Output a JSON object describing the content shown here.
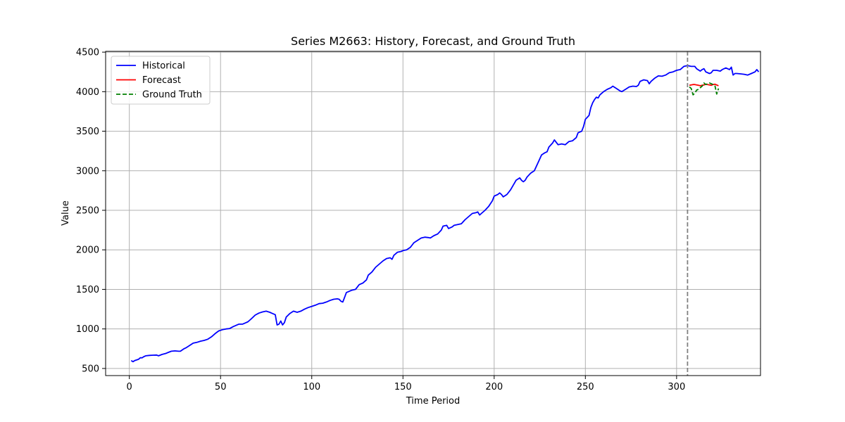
{
  "chart_data": {
    "type": "line",
    "title": "Series M2663: History, Forecast, and Ground Truth",
    "xlabel": "Time Period",
    "ylabel": "Value",
    "xlim": [
      -13,
      346
    ],
    "ylim": [
      410,
      4510
    ],
    "xticks": [
      0,
      50,
      100,
      150,
      200,
      250,
      300
    ],
    "yticks": [
      500,
      1000,
      1500,
      2000,
      2500,
      3000,
      3500,
      4000,
      4500
    ],
    "grid": true,
    "legend_position": "top-left",
    "forecast_start_marker": 306,
    "series": [
      {
        "name": "Historical",
        "color": "#0000ff",
        "style": "solid",
        "points": [
          [
            1,
            600
          ],
          [
            2,
            585
          ],
          [
            3,
            600
          ],
          [
            5,
            615
          ],
          [
            6,
            635
          ],
          [
            7,
            635
          ],
          [
            8,
            650
          ],
          [
            9,
            660
          ],
          [
            11,
            665
          ],
          [
            13,
            668
          ],
          [
            15,
            670
          ],
          [
            16,
            660
          ],
          [
            18,
            678
          ],
          [
            20,
            690
          ],
          [
            21,
            700
          ],
          [
            23,
            718
          ],
          [
            25,
            722
          ],
          [
            27,
            718
          ],
          [
            28,
            718
          ],
          [
            30,
            750
          ],
          [
            31,
            760
          ],
          [
            33,
            790
          ],
          [
            35,
            820
          ],
          [
            37,
            830
          ],
          [
            39,
            845
          ],
          [
            41,
            855
          ],
          [
            43,
            870
          ],
          [
            45,
            900
          ],
          [
            47,
            940
          ],
          [
            49,
            975
          ],
          [
            51,
            990
          ],
          [
            53,
            1000
          ],
          [
            55,
            1005
          ],
          [
            57,
            1030
          ],
          [
            58,
            1040
          ],
          [
            60,
            1060
          ],
          [
            62,
            1060
          ],
          [
            64,
            1080
          ],
          [
            65,
            1090
          ],
          [
            67,
            1130
          ],
          [
            69,
            1175
          ],
          [
            71,
            1200
          ],
          [
            73,
            1215
          ],
          [
            75,
            1225
          ],
          [
            77,
            1210
          ],
          [
            78,
            1200
          ],
          [
            80,
            1180
          ],
          [
            81,
            1050
          ],
          [
            82,
            1060
          ],
          [
            83,
            1100
          ],
          [
            84,
            1050
          ],
          [
            85,
            1080
          ],
          [
            86,
            1150
          ],
          [
            88,
            1195
          ],
          [
            90,
            1225
          ],
          [
            92,
            1210
          ],
          [
            94,
            1225
          ],
          [
            96,
            1250
          ],
          [
            98,
            1270
          ],
          [
            100,
            1285
          ],
          [
            102,
            1300
          ],
          [
            104,
            1320
          ],
          [
            106,
            1325
          ],
          [
            108,
            1340
          ],
          [
            110,
            1360
          ],
          [
            112,
            1375
          ],
          [
            114,
            1380
          ],
          [
            115,
            1375
          ],
          [
            116,
            1350
          ],
          [
            117,
            1340
          ],
          [
            118,
            1400
          ],
          [
            119,
            1460
          ],
          [
            120,
            1470
          ],
          [
            122,
            1490
          ],
          [
            124,
            1500
          ],
          [
            126,
            1560
          ],
          [
            128,
            1580
          ],
          [
            130,
            1620
          ],
          [
            131,
            1680
          ],
          [
            133,
            1720
          ],
          [
            135,
            1780
          ],
          [
            137,
            1820
          ],
          [
            139,
            1860
          ],
          [
            141,
            1890
          ],
          [
            143,
            1900
          ],
          [
            144,
            1880
          ],
          [
            145,
            1930
          ],
          [
            147,
            1970
          ],
          [
            149,
            1980
          ],
          [
            150,
            1990
          ],
          [
            152,
            2000
          ],
          [
            154,
            2030
          ],
          [
            155,
            2060
          ],
          [
            156,
            2090
          ],
          [
            158,
            2120
          ],
          [
            160,
            2150
          ],
          [
            162,
            2160
          ],
          [
            164,
            2155
          ],
          [
            165,
            2150
          ],
          [
            167,
            2180
          ],
          [
            169,
            2200
          ],
          [
            171,
            2250
          ],
          [
            172,
            2300
          ],
          [
            174,
            2310
          ],
          [
            175,
            2270
          ],
          [
            177,
            2290
          ],
          [
            178,
            2310
          ],
          [
            180,
            2320
          ],
          [
            182,
            2330
          ],
          [
            184,
            2380
          ],
          [
            186,
            2420
          ],
          [
            188,
            2460
          ],
          [
            190,
            2470
          ],
          [
            191,
            2480
          ],
          [
            192,
            2440
          ],
          [
            193,
            2460
          ],
          [
            195,
            2500
          ],
          [
            197,
            2550
          ],
          [
            199,
            2620
          ],
          [
            200,
            2680
          ],
          [
            202,
            2700
          ],
          [
            203,
            2720
          ],
          [
            204,
            2700
          ],
          [
            205,
            2670
          ],
          [
            207,
            2700
          ],
          [
            209,
            2760
          ],
          [
            210,
            2800
          ],
          [
            212,
            2880
          ],
          [
            214,
            2910
          ],
          [
            215,
            2880
          ],
          [
            216,
            2860
          ],
          [
            217,
            2880
          ],
          [
            218,
            2920
          ],
          [
            220,
            2970
          ],
          [
            222,
            3000
          ],
          [
            224,
            3100
          ],
          [
            226,
            3200
          ],
          [
            228,
            3230
          ],
          [
            229,
            3240
          ],
          [
            230,
            3300
          ],
          [
            232,
            3350
          ],
          [
            233,
            3390
          ],
          [
            234,
            3360
          ],
          [
            235,
            3330
          ],
          [
            237,
            3340
          ],
          [
            239,
            3330
          ],
          [
            241,
            3370
          ],
          [
            243,
            3380
          ],
          [
            245,
            3420
          ],
          [
            246,
            3480
          ],
          [
            248,
            3500
          ],
          [
            249,
            3560
          ],
          [
            250,
            3650
          ],
          [
            252,
            3700
          ],
          [
            253,
            3800
          ],
          [
            254,
            3860
          ],
          [
            255,
            3900
          ],
          [
            256,
            3930
          ],
          [
            257,
            3920
          ],
          [
            258,
            3960
          ],
          [
            260,
            4000
          ],
          [
            262,
            4030
          ],
          [
            264,
            4050
          ],
          [
            265,
            4070
          ],
          [
            267,
            4040
          ],
          [
            269,
            4010
          ],
          [
            270,
            4000
          ],
          [
            272,
            4030
          ],
          [
            274,
            4060
          ],
          [
            276,
            4070
          ],
          [
            278,
            4065
          ],
          [
            279,
            4080
          ],
          [
            280,
            4130
          ],
          [
            282,
            4150
          ],
          [
            284,
            4140
          ],
          [
            285,
            4100
          ],
          [
            286,
            4130
          ],
          [
            288,
            4170
          ],
          [
            290,
            4200
          ],
          [
            292,
            4195
          ],
          [
            294,
            4210
          ],
          [
            296,
            4240
          ],
          [
            298,
            4250
          ],
          [
            300,
            4270
          ],
          [
            302,
            4280
          ],
          [
            304,
            4320
          ],
          [
            306,
            4330
          ],
          [
            308,
            4320
          ],
          [
            310,
            4320
          ],
          [
            311,
            4290
          ],
          [
            313,
            4260
          ],
          [
            314,
            4280
          ],
          [
            315,
            4290
          ],
          [
            316,
            4250
          ],
          [
            318,
            4230
          ],
          [
            319,
            4240
          ],
          [
            320,
            4270
          ],
          [
            322,
            4270
          ],
          [
            324,
            4260
          ],
          [
            325,
            4280
          ],
          [
            327,
            4300
          ],
          [
            329,
            4280
          ],
          [
            330,
            4310
          ],
          [
            331,
            4210
          ],
          [
            332,
            4230
          ],
          [
            333,
            4230
          ],
          [
            335,
            4225
          ],
          [
            337,
            4220
          ],
          [
            339,
            4210
          ],
          [
            341,
            4230
          ],
          [
            343,
            4250
          ],
          [
            344,
            4280
          ],
          [
            345,
            4250
          ]
        ]
      },
      {
        "name": "Forecast",
        "color": "#ff0000",
        "style": "solid",
        "points": [
          [
            307,
            4080
          ],
          [
            308,
            4085
          ],
          [
            309,
            4090
          ],
          [
            310,
            4090
          ],
          [
            311,
            4085
          ],
          [
            312,
            4080
          ],
          [
            313,
            4075
          ],
          [
            314,
            4080
          ],
          [
            315,
            4085
          ],
          [
            316,
            4095
          ],
          [
            317,
            4090
          ],
          [
            318,
            4085
          ],
          [
            319,
            4080
          ],
          [
            320,
            4090
          ],
          [
            321,
            4095
          ],
          [
            322,
            4085
          ],
          [
            323,
            4075
          ]
        ]
      },
      {
        "name": "Ground Truth",
        "color": "#008000",
        "style": "dashed",
        "points": [
          [
            307,
            4060
          ],
          [
            308,
            4040
          ],
          [
            309,
            3960
          ],
          [
            310,
            3980
          ],
          [
            311,
            4020
          ],
          [
            312,
            4030
          ],
          [
            313,
            4050
          ],
          [
            314,
            4070
          ],
          [
            315,
            4110
          ],
          [
            316,
            4090
          ],
          [
            317,
            4100
          ],
          [
            318,
            4110
          ],
          [
            319,
            4100
          ],
          [
            320,
            4090
          ],
          [
            321,
            4080
          ],
          [
            322,
            3970
          ],
          [
            323,
            4040
          ]
        ]
      }
    ]
  }
}
